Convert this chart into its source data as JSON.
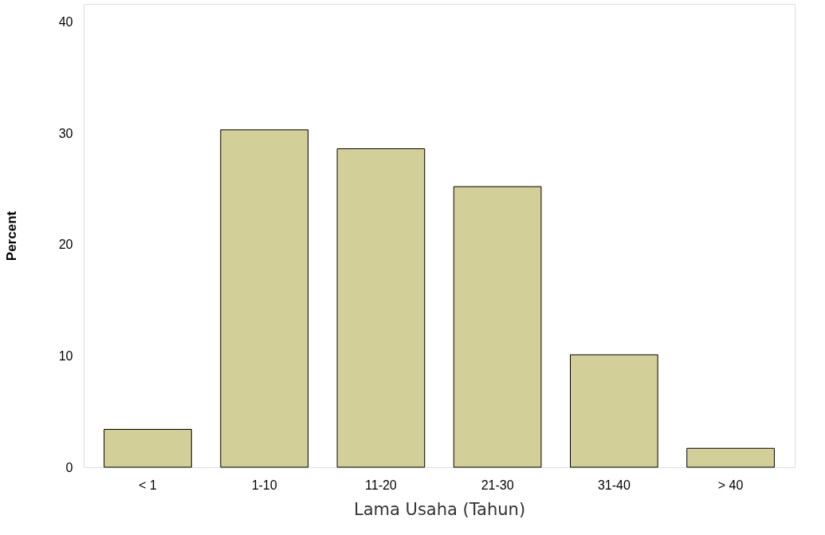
{
  "chart_data": {
    "type": "bar",
    "xlabel": "Lama Usaha (Tahun)",
    "ylabel": "Percent",
    "categories": [
      "< 1",
      "1-10",
      "11-20",
      "21-30",
      "31-40",
      "> 40"
    ],
    "values": [
      3.4,
      30.3,
      28.6,
      25.2,
      10.1,
      1.7
    ],
    "color": "#d3cf98",
    "ylim": [
      0,
      41.6
    ],
    "yticks": [
      0,
      10,
      20,
      30,
      40
    ],
    "grid": false
  }
}
